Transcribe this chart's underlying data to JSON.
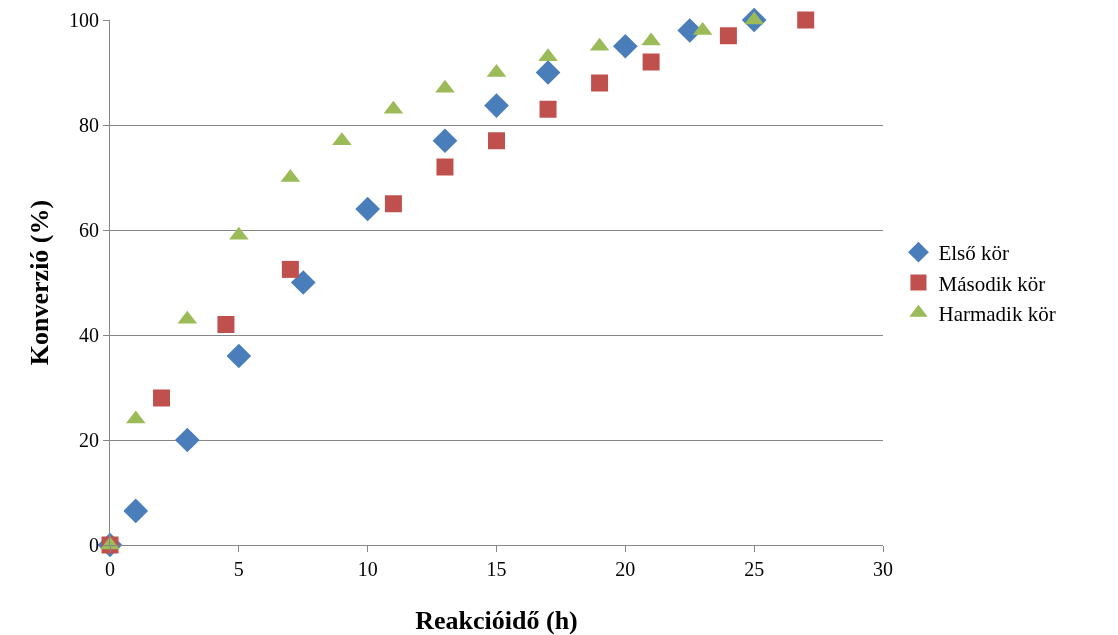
{
  "chart_data": {
    "type": "scatter",
    "xlabel": "Reakcióidő (h)",
    "ylabel": "Konverzió (%)",
    "xlim": [
      0,
      30
    ],
    "xticks": [
      0,
      5,
      10,
      15,
      20,
      25,
      30
    ],
    "ylim": [
      0,
      100
    ],
    "yticks": [
      0,
      20,
      40,
      60,
      80,
      100
    ],
    "grid": "y",
    "legend": "right",
    "series": [
      {
        "name": "Első kör",
        "color": "#4a7ebb",
        "marker": "diamond",
        "x": [
          0,
          1,
          3,
          5,
          7.5,
          10,
          13,
          15,
          17,
          20,
          22.5,
          25
        ],
        "values": [
          0,
          6.5,
          20,
          36,
          50,
          64,
          77,
          83.7,
          90,
          95,
          98,
          100
        ]
      },
      {
        "name": "Második kör",
        "color": "#c0504d",
        "marker": "square",
        "x": [
          0,
          2,
          4.5,
          7,
          11,
          13,
          15,
          17,
          19,
          21,
          24,
          27
        ],
        "values": [
          0,
          28,
          42,
          52.5,
          65,
          72,
          77,
          83,
          88,
          92,
          97,
          100
        ]
      },
      {
        "name": "Harmadik kör",
        "color": "#9bbb59",
        "marker": "triangle",
        "x": [
          0,
          1,
          3,
          5,
          7,
          9,
          11,
          13,
          15,
          17,
          19,
          21,
          23,
          25
        ],
        "values": [
          0,
          24,
          43,
          59,
          70,
          77,
          83,
          87,
          90,
          93,
          95,
          96,
          98,
          100
        ]
      }
    ]
  }
}
